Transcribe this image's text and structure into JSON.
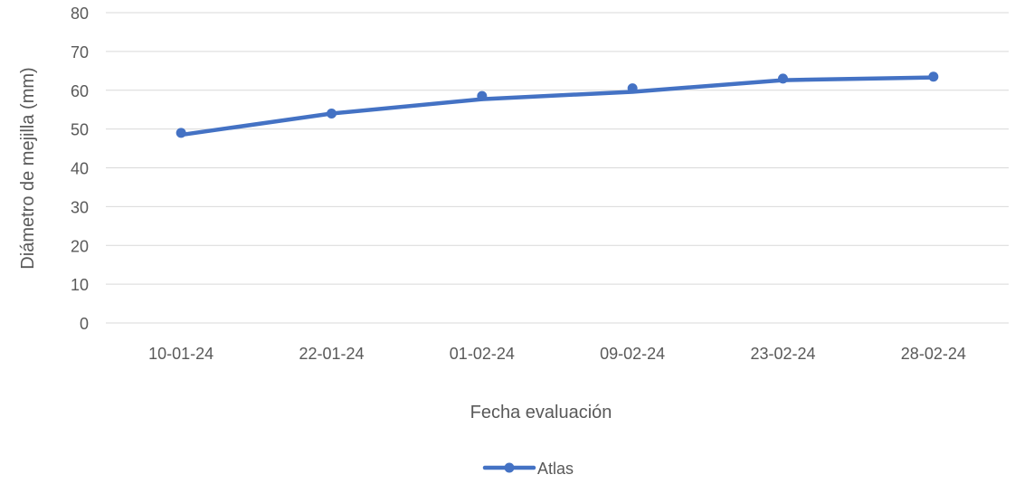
{
  "chart_data": {
    "type": "line",
    "title": "",
    "xlabel": "Fecha evaluación",
    "ylabel": "Diámetro de mejilla (mm)",
    "categories": [
      "10-01-24",
      "22-01-24",
      "01-02-24",
      "09-02-24",
      "23-02-24",
      "28-02-24"
    ],
    "ylim": [
      0,
      80
    ],
    "yticks": [
      0,
      10,
      20,
      30,
      40,
      50,
      60,
      70,
      80
    ],
    "grid": true,
    "legend": "bottom-center",
    "series": [
      {
        "name": "Atlas",
        "values": [
          49,
          54,
          58.5,
          60.5,
          63,
          63.5
        ],
        "trend": [
          48.5,
          54,
          57.7,
          59.6,
          62.6,
          63.3
        ],
        "color": "#4472c4"
      }
    ]
  },
  "colors": {
    "grid": "#d9d9d9",
    "text": "#595959"
  }
}
